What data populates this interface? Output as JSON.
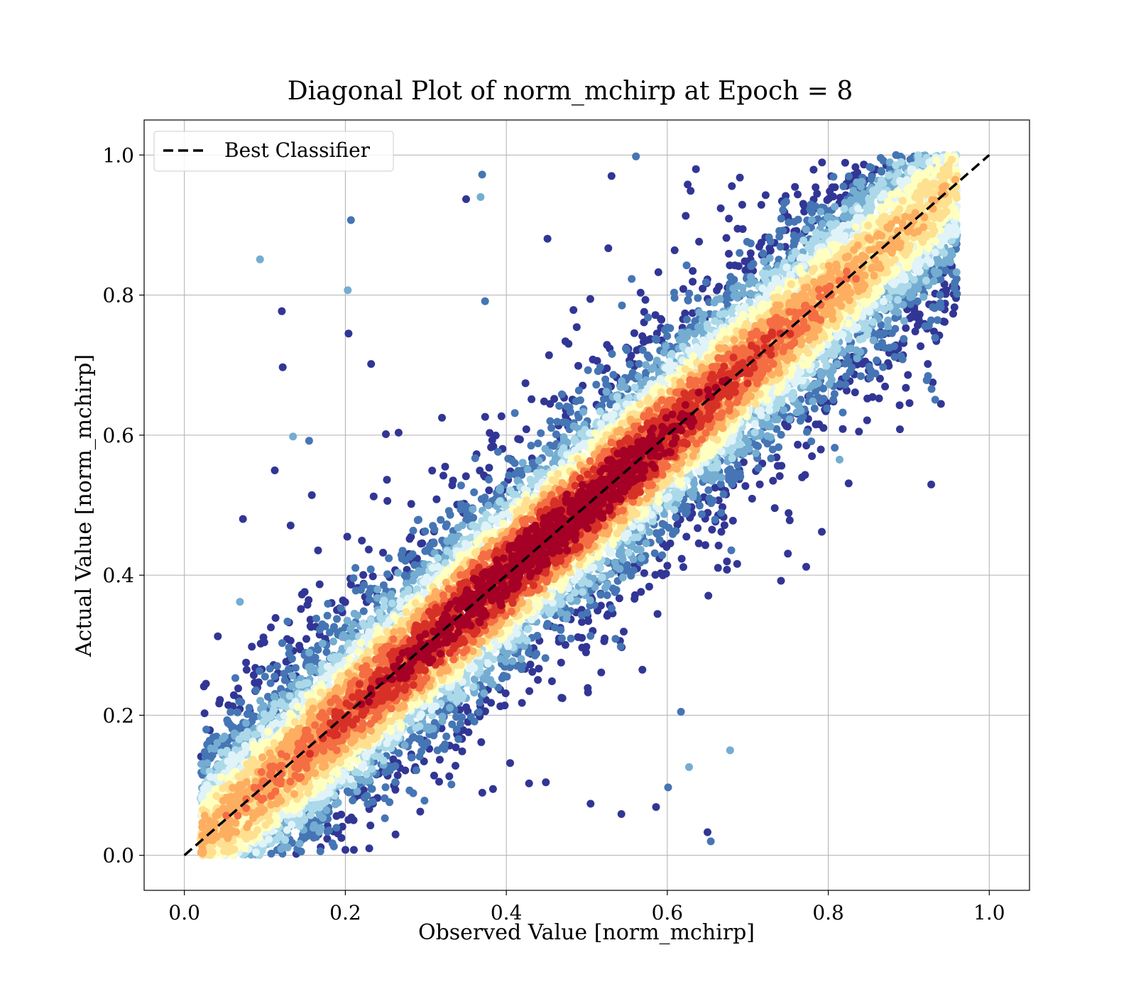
{
  "chart_data": {
    "type": "scatter",
    "title": "Diagonal Plot of norm_mchirp at Epoch = 8",
    "xlabel": "Observed Value [norm_mchirp]",
    "ylabel": "Actual Value [norm_mchirp]",
    "xlim": [
      -0.05,
      1.05
    ],
    "ylim": [
      -0.05,
      1.05
    ],
    "xticks": [
      "0.0",
      "0.2",
      "0.4",
      "0.6",
      "0.8",
      "1.0"
    ],
    "yticks": [
      "0.0",
      "0.2",
      "0.4",
      "0.6",
      "0.8",
      "1.0"
    ],
    "grid": true,
    "legend": {
      "placement": "upper-left",
      "entries": [
        "Best Classifier"
      ]
    },
    "reference_line": {
      "name": "Best Classifier",
      "style": "dashed",
      "color": "#000000",
      "x": [
        0.0,
        1.0
      ],
      "y": [
        0.0,
        1.0
      ]
    },
    "colormap": {
      "name": "RdYlBu_r",
      "description": "points colored by local density; dark blue = sparse, dark red = dense",
      "colors": [
        "#313695",
        "#4575b4",
        "#74add1",
        "#abd9e9",
        "#e0f3f8",
        "#ffffbf",
        "#fee090",
        "#fdae61",
        "#f46d43",
        "#d73027",
        "#a50026"
      ]
    },
    "point_distribution": {
      "approx_count": 14000,
      "center_line": "y = x",
      "x_range": [
        0.02,
        0.96
      ],
      "y_range": [
        0.0,
        1.0
      ],
      "spread_sd_near_line": 0.07
    },
    "outliers": [
      {
        "x": 0.094,
        "y": 0.851
      },
      {
        "x": 0.121,
        "y": 0.777
      },
      {
        "x": 0.207,
        "y": 0.907
      },
      {
        "x": 0.203,
        "y": 0.807
      },
      {
        "x": 0.204,
        "y": 0.745
      },
      {
        "x": 0.37,
        "y": 0.972
      },
      {
        "x": 0.368,
        "y": 0.94
      },
      {
        "x": 0.35,
        "y": 0.937
      },
      {
        "x": 0.561,
        "y": 0.998
      },
      {
        "x": 0.135,
        "y": 0.598
      },
      {
        "x": 0.132,
        "y": 0.471
      },
      {
        "x": 0.155,
        "y": 0.592
      },
      {
        "x": 0.069,
        "y": 0.362
      },
      {
        "x": 0.543,
        "y": 0.059
      },
      {
        "x": 0.601,
        "y": 0.097
      },
      {
        "x": 0.627,
        "y": 0.126
      },
      {
        "x": 0.65,
        "y": 0.033
      },
      {
        "x": 0.654,
        "y": 0.02
      },
      {
        "x": 0.678,
        "y": 0.15
      },
      {
        "x": 0.792,
        "y": 0.462
      },
      {
        "x": 0.808,
        "y": 0.582
      },
      {
        "x": 0.814,
        "y": 0.565
      },
      {
        "x": 0.586,
        "y": 0.069
      },
      {
        "x": 0.617,
        "y": 0.205
      }
    ]
  }
}
